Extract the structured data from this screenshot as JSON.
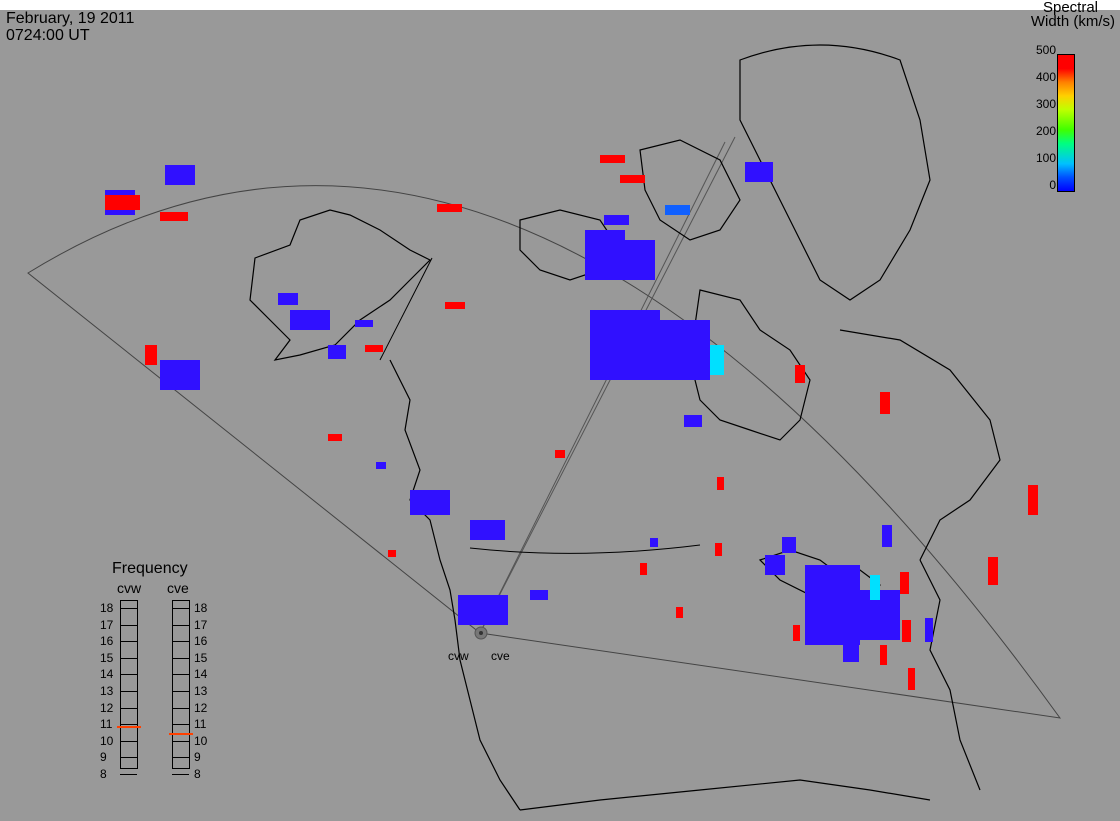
{
  "header": {
    "date": "February, 19 2011",
    "time": "0724:00 UT"
  },
  "scale": {
    "title_line1": "Spectral",
    "title_line2": "Width (km/s)",
    "ticks": [
      "500",
      "400",
      "300",
      "200",
      "100",
      "0"
    ]
  },
  "frequency": {
    "title": "Frequency",
    "radars": [
      "cvw",
      "cve"
    ],
    "ticks": [
      "18",
      "17",
      "16",
      "15",
      "14",
      "13",
      "12",
      "11",
      "10",
      "9",
      "8"
    ],
    "cvw_value": 10.9,
    "cve_value": 10.5
  },
  "sites": {
    "cvw": "cvw",
    "cve": "cve"
  },
  "colors": {
    "background": "#999999",
    "low": "#0000ff",
    "high": "#ff0000",
    "indicator": "#ff4000"
  }
}
